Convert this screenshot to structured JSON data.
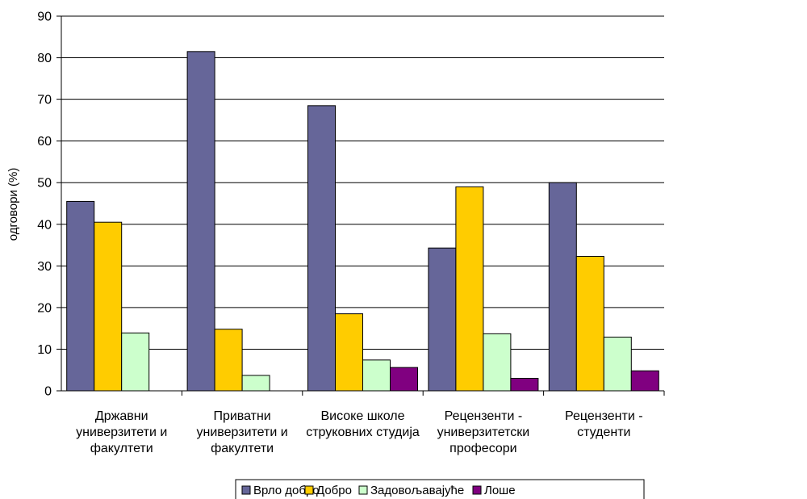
{
  "chart_data": {
    "type": "bar",
    "title": "",
    "xlabel": "",
    "ylabel": "одговори (%)",
    "ylim": [
      0,
      90
    ],
    "yticks": [
      0,
      10,
      20,
      30,
      40,
      50,
      60,
      70,
      80,
      90
    ],
    "grid": true,
    "legend_position": "bottom",
    "categories": [
      [
        "Државни",
        "универзитети и",
        "факултети"
      ],
      [
        "Приватни",
        "универзитети и",
        "факултети"
      ],
      [
        "Високе школе",
        "струковних студија"
      ],
      [
        "Рецензенти -",
        "универзитетски",
        "професори"
      ],
      [
        "Рецензенти -",
        "студенти"
      ]
    ],
    "series": [
      {
        "name": "Врло добро",
        "color": "#666699",
        "values": [
          45.5,
          81.5,
          68.5,
          34.3,
          50.0
        ]
      },
      {
        "name": "Добро",
        "color": "#ffcc00",
        "values": [
          40.5,
          14.8,
          18.5,
          49.0,
          32.3
        ]
      },
      {
        "name": "Задовољавајуће",
        "color": "#ccffcc",
        "values": [
          13.9,
          3.7,
          7.4,
          13.7,
          12.9
        ]
      },
      {
        "name": "Лоше",
        "color": "#800080",
        "values": [
          0,
          0,
          5.6,
          3.0,
          4.8
        ]
      }
    ]
  }
}
